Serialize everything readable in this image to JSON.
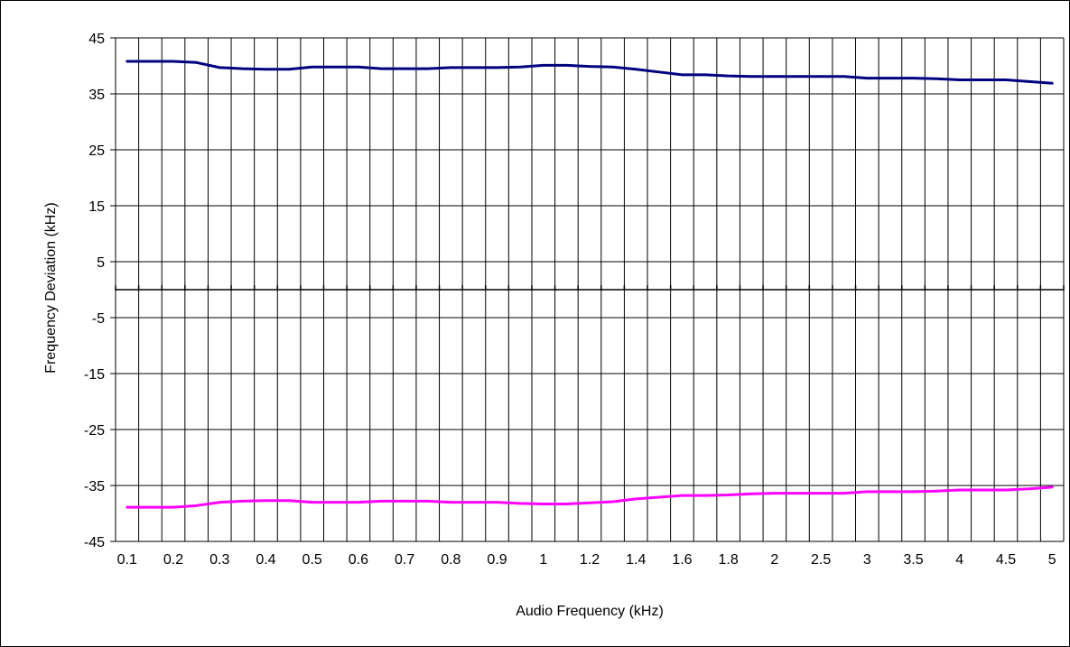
{
  "chart_data": {
    "type": "line",
    "title": "",
    "xlabel": "Audio Frequency (kHz)",
    "ylabel": "Frequency Deviation (kHz)",
    "x_ticks": [
      {
        "index": 0,
        "label": "0.1"
      },
      {
        "index": 2,
        "label": "0.2"
      },
      {
        "index": 4,
        "label": "0.3"
      },
      {
        "index": 6,
        "label": "0.4"
      },
      {
        "index": 8,
        "label": "0.5"
      },
      {
        "index": 10,
        "label": "0.6"
      },
      {
        "index": 12,
        "label": "0.7"
      },
      {
        "index": 14,
        "label": "0.8"
      },
      {
        "index": 16,
        "label": "0.9"
      },
      {
        "index": 18,
        "label": "1"
      },
      {
        "index": 20,
        "label": "1.2"
      },
      {
        "index": 22,
        "label": "1.4"
      },
      {
        "index": 24,
        "label": "1.6"
      },
      {
        "index": 26,
        "label": "1.8"
      },
      {
        "index": 28,
        "label": "2"
      },
      {
        "index": 30,
        "label": "2.5"
      },
      {
        "index": 32,
        "label": "3"
      },
      {
        "index": 34,
        "label": "3.5"
      },
      {
        "index": 36,
        "label": "4"
      },
      {
        "index": 38,
        "label": "4.5"
      },
      {
        "index": 40,
        "label": "5"
      }
    ],
    "y_ticks": [
      "45",
      "35",
      "25",
      "15",
      "5",
      "-5",
      "-15",
      "-25",
      "-35",
      "-45"
    ],
    "ylim": [
      -45,
      45
    ],
    "n_points": 41,
    "grid": true,
    "series": [
      {
        "color": "#000080",
        "values": [
          40.8,
          40.8,
          40.8,
          40.6,
          39.7,
          39.5,
          39.4,
          39.4,
          39.8,
          39.8,
          39.8,
          39.5,
          39.5,
          39.5,
          39.7,
          39.7,
          39.7,
          39.8,
          40.1,
          40.1,
          39.9,
          39.8,
          39.4,
          38.9,
          38.4,
          38.4,
          38.2,
          38.1,
          38.1,
          38.1,
          38.1,
          38.1,
          37.8,
          37.8,
          37.8,
          37.7,
          37.5,
          37.5,
          37.5,
          37.2,
          36.9
        ]
      },
      {
        "color": "#ff00ff",
        "values": [
          -38.9,
          -38.9,
          -38.9,
          -38.6,
          -38.0,
          -37.8,
          -37.7,
          -37.7,
          -38.0,
          -38.0,
          -38.0,
          -37.8,
          -37.8,
          -37.8,
          -38.0,
          -38.0,
          -38.0,
          -38.2,
          -38.3,
          -38.3,
          -38.1,
          -37.9,
          -37.4,
          -37.1,
          -36.8,
          -36.8,
          -36.7,
          -36.5,
          -36.4,
          -36.4,
          -36.4,
          -36.4,
          -36.1,
          -36.1,
          -36.1,
          -36.0,
          -35.8,
          -35.8,
          -35.8,
          -35.6,
          -35.3
        ]
      }
    ]
  }
}
